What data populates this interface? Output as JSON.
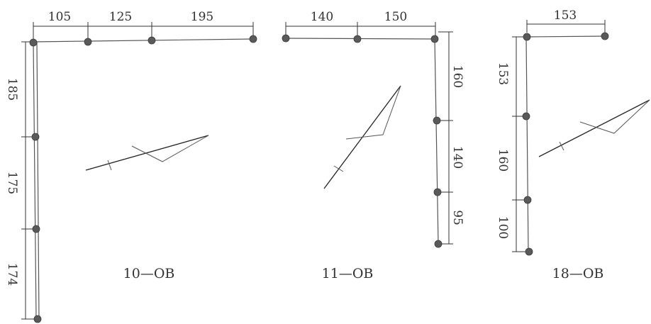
{
  "panels": [
    {
      "caption": "10—OB",
      "top_dims": [
        "105",
        "125",
        "195"
      ],
      "side_dims": [
        "185",
        "175",
        "174"
      ]
    },
    {
      "caption": "11—OB",
      "top_dims": [
        "140",
        "150"
      ],
      "side_dims": [
        "160",
        "140",
        "95"
      ]
    },
    {
      "caption": "18—OB",
      "top_dims": [
        "153"
      ],
      "side_dims": [
        "153",
        "160",
        "100"
      ]
    }
  ]
}
